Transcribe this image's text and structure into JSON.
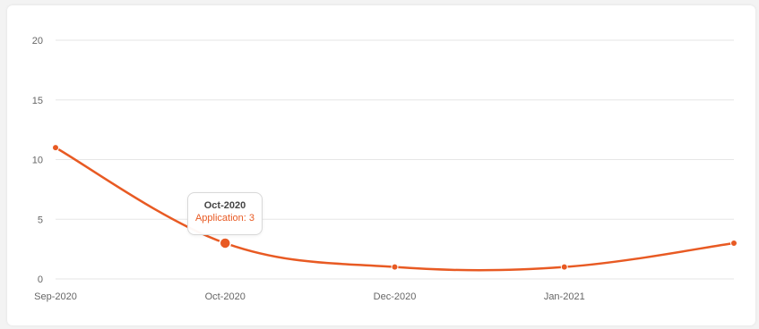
{
  "chart_data": {
    "type": "line",
    "categories": [
      "Sep-2020",
      "Oct-2020",
      "Dec-2020",
      "Jan-2021",
      ""
    ],
    "series": [
      {
        "name": "Application",
        "values": [
          11,
          3,
          1,
          1,
          3
        ]
      }
    ],
    "ylim": [
      0,
      20
    ],
    "yticks": [
      "0",
      "5",
      "10",
      "15",
      "20"
    ],
    "grid": "horizontal",
    "color": "#e85a23",
    "tooltip": {
      "title": "Oct-2020",
      "value_text": "Application: 3",
      "category_index": 1
    }
  }
}
